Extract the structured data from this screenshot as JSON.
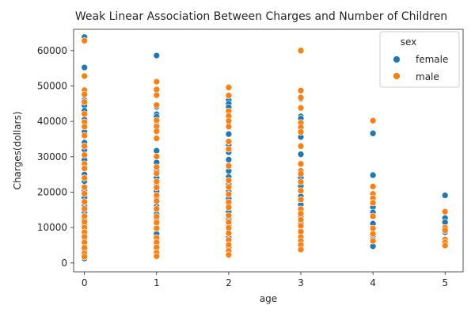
{
  "chart_data": {
    "type": "scatter",
    "title": "Weak Linear Association Between Charges and Number of Children",
    "xlabel": "age",
    "ylabel": "Charges(dollars)",
    "xlim": [
      -0.15,
      5.25
    ],
    "ylim": [
      -2500,
      66000
    ],
    "xticks": [
      0,
      1,
      2,
      3,
      4,
      5
    ],
    "yticks": [
      0,
      10000,
      20000,
      30000,
      40000,
      50000,
      60000
    ],
    "grid": false,
    "legend": {
      "title": "sex",
      "placement": "top-right"
    },
    "series": [
      {
        "name": "female",
        "color": "#1f77b4",
        "points": [
          [
            0,
            63800
          ],
          [
            0,
            55200
          ],
          [
            0,
            46000
          ],
          [
            0,
            44500
          ],
          [
            0,
            43000
          ],
          [
            0,
            40500
          ],
          [
            0,
            37000
          ],
          [
            0,
            34000
          ],
          [
            0,
            32000
          ],
          [
            0,
            29200
          ],
          [
            0,
            26500
          ],
          [
            0,
            25000
          ],
          [
            0,
            23100
          ],
          [
            0,
            20400
          ],
          [
            0,
            18500
          ],
          [
            0,
            16100
          ],
          [
            0,
            14300
          ],
          [
            0,
            12400
          ],
          [
            0,
            10800
          ],
          [
            0,
            9100
          ],
          [
            0,
            8200
          ],
          [
            0,
            6900
          ],
          [
            0,
            4800
          ],
          [
            0,
            3600
          ],
          [
            0,
            2100
          ],
          [
            0,
            1300
          ],
          [
            1,
            58600
          ],
          [
            1,
            44100
          ],
          [
            1,
            42000
          ],
          [
            1,
            41300
          ],
          [
            1,
            39000
          ],
          [
            1,
            35100
          ],
          [
            1,
            31700
          ],
          [
            1,
            28400
          ],
          [
            1,
            26000
          ],
          [
            1,
            24100
          ],
          [
            1,
            22500
          ],
          [
            1,
            20300
          ],
          [
            1,
            18500
          ],
          [
            1,
            16000
          ],
          [
            1,
            13800
          ],
          [
            1,
            12500
          ],
          [
            1,
            11000
          ],
          [
            1,
            9500
          ],
          [
            1,
            8200
          ],
          [
            1,
            6500
          ],
          [
            1,
            5200
          ],
          [
            1,
            4000
          ],
          [
            1,
            3300
          ],
          [
            1,
            2100
          ],
          [
            2,
            46000
          ],
          [
            2,
            45000
          ],
          [
            2,
            44000
          ],
          [
            2,
            36400
          ],
          [
            2,
            33400
          ],
          [
            2,
            31300
          ],
          [
            2,
            29200
          ],
          [
            2,
            26000
          ],
          [
            2,
            24300
          ],
          [
            2,
            22200
          ],
          [
            2,
            20200
          ],
          [
            2,
            18200
          ],
          [
            2,
            16700
          ],
          [
            2,
            14400
          ],
          [
            2,
            12400
          ],
          [
            2,
            10500
          ],
          [
            2,
            8700
          ],
          [
            2,
            7200
          ],
          [
            2,
            5300
          ],
          [
            2,
            4300
          ],
          [
            2,
            3100
          ],
          [
            3,
            46400
          ],
          [
            3,
            41400
          ],
          [
            3,
            40800
          ],
          [
            3,
            35600
          ],
          [
            3,
            30700
          ],
          [
            3,
            24100
          ],
          [
            3,
            21800
          ],
          [
            3,
            18800
          ],
          [
            3,
            16500
          ],
          [
            3,
            14800
          ],
          [
            3,
            13200
          ],
          [
            3,
            11300
          ],
          [
            3,
            9200
          ],
          [
            3,
            7400
          ],
          [
            3,
            5900
          ],
          [
            3,
            4300
          ],
          [
            4,
            36600
          ],
          [
            4,
            24800
          ],
          [
            4,
            15800
          ],
          [
            4,
            14300
          ],
          [
            4,
            11100
          ],
          [
            4,
            7400
          ],
          [
            4,
            6600
          ],
          [
            4,
            4700
          ],
          [
            5,
            19100
          ],
          [
            5,
            12700
          ],
          [
            5,
            11500
          ],
          [
            5,
            8700
          ]
        ]
      },
      {
        "name": "male",
        "color": "#ff7f0e",
        "points": [
          [
            0,
            62800
          ],
          [
            0,
            52800
          ],
          [
            0,
            48800
          ],
          [
            0,
            47600
          ],
          [
            0,
            45500
          ],
          [
            0,
            42100
          ],
          [
            0,
            39800
          ],
          [
            0,
            38500
          ],
          [
            0,
            36000
          ],
          [
            0,
            33000
          ],
          [
            0,
            30500
          ],
          [
            0,
            28000
          ],
          [
            0,
            26700
          ],
          [
            0,
            24000
          ],
          [
            0,
            21400
          ],
          [
            0,
            19600
          ],
          [
            0,
            17300
          ],
          [
            0,
            15300
          ],
          [
            0,
            13200
          ],
          [
            0,
            11600
          ],
          [
            0,
            10000
          ],
          [
            0,
            8700
          ],
          [
            0,
            7400
          ],
          [
            0,
            5800
          ],
          [
            0,
            4300
          ],
          [
            0,
            2700
          ],
          [
            0,
            1800
          ],
          [
            1,
            51200
          ],
          [
            1,
            49000
          ],
          [
            1,
            47400
          ],
          [
            1,
            44600
          ],
          [
            1,
            40300
          ],
          [
            1,
            38500
          ],
          [
            1,
            37200
          ],
          [
            1,
            35200
          ],
          [
            1,
            30100
          ],
          [
            1,
            27100
          ],
          [
            1,
            25300
          ],
          [
            1,
            23000
          ],
          [
            1,
            21300
          ],
          [
            1,
            19100
          ],
          [
            1,
            17500
          ],
          [
            1,
            15300
          ],
          [
            1,
            13100
          ],
          [
            1,
            11400
          ],
          [
            1,
            9800
          ],
          [
            1,
            7100
          ],
          [
            1,
            5800
          ],
          [
            1,
            4400
          ],
          [
            1,
            2900
          ],
          [
            1,
            1900
          ],
          [
            2,
            49600
          ],
          [
            2,
            47300
          ],
          [
            2,
            42900
          ],
          [
            2,
            41500
          ],
          [
            2,
            40100
          ],
          [
            2,
            38500
          ],
          [
            2,
            34300
          ],
          [
            2,
            32200
          ],
          [
            2,
            27400
          ],
          [
            2,
            23300
          ],
          [
            2,
            21400
          ],
          [
            2,
            19400
          ],
          [
            2,
            17200
          ],
          [
            2,
            15700
          ],
          [
            2,
            13400
          ],
          [
            2,
            11500
          ],
          [
            2,
            9900
          ],
          [
            2,
            8400
          ],
          [
            2,
            6500
          ],
          [
            2,
            5100
          ],
          [
            2,
            3400
          ],
          [
            2,
            2300
          ],
          [
            3,
            60000
          ],
          [
            3,
            48700
          ],
          [
            3,
            46700
          ],
          [
            3,
            43800
          ],
          [
            3,
            39600
          ],
          [
            3,
            38300
          ],
          [
            3,
            37000
          ],
          [
            3,
            33000
          ],
          [
            3,
            28000
          ],
          [
            3,
            26000
          ],
          [
            3,
            25200
          ],
          [
            3,
            22900
          ],
          [
            3,
            20400
          ],
          [
            3,
            17900
          ],
          [
            3,
            15200
          ],
          [
            3,
            13900
          ],
          [
            3,
            12200
          ],
          [
            3,
            10500
          ],
          [
            3,
            8800
          ],
          [
            3,
            7300
          ],
          [
            3,
            6200
          ],
          [
            3,
            5100
          ],
          [
            3,
            3800
          ],
          [
            4,
            40200
          ],
          [
            4,
            21600
          ],
          [
            4,
            19500
          ],
          [
            4,
            18300
          ],
          [
            4,
            17000
          ],
          [
            4,
            13200
          ],
          [
            4,
            9800
          ],
          [
            4,
            8200
          ],
          [
            4,
            6200
          ],
          [
            5,
            14500
          ],
          [
            5,
            10000
          ],
          [
            5,
            9200
          ],
          [
            5,
            6600
          ],
          [
            5,
            5800
          ],
          [
            5,
            4900
          ]
        ]
      }
    ]
  }
}
